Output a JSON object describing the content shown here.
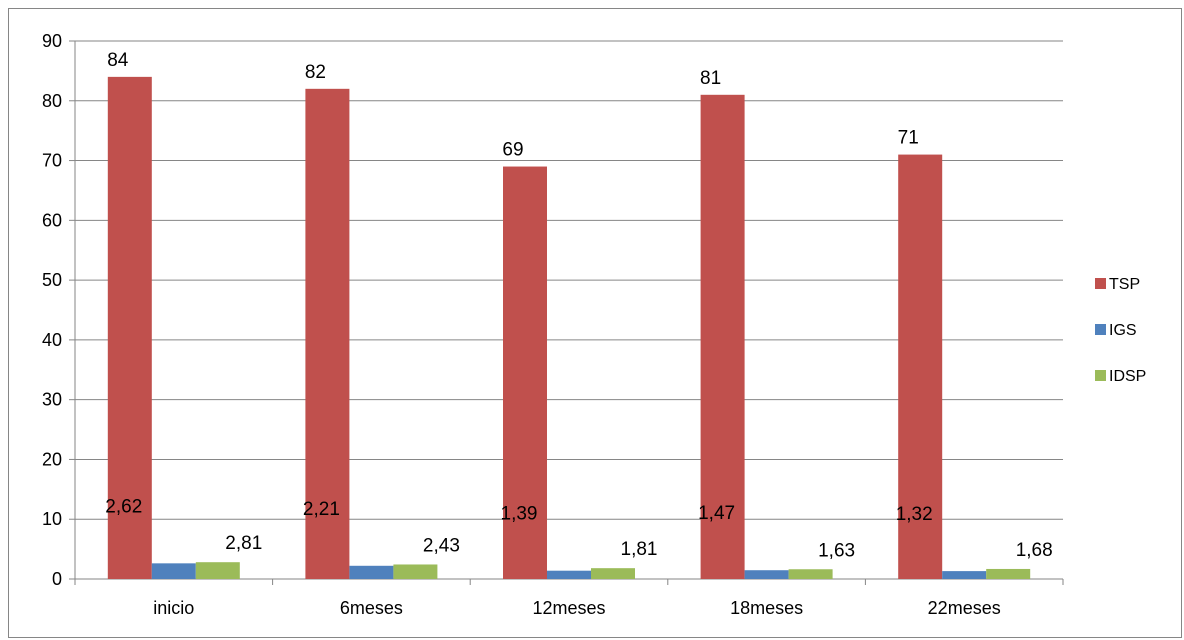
{
  "chart_data": {
    "type": "bar",
    "categories": [
      "inicio",
      "6meses",
      "12meses",
      "18meses",
      "22meses"
    ],
    "series": [
      {
        "name": "TSP",
        "values": [
          84,
          82,
          69,
          81,
          71
        ],
        "labels": [
          "84",
          "82",
          "69",
          "81",
          "71"
        ],
        "color": "#C0504D"
      },
      {
        "name": "IGS",
        "values": [
          2.62,
          2.21,
          1.39,
          1.47,
          1.32
        ],
        "labels": [
          "2,62",
          "2,21",
          "1,39",
          "1,47",
          "1,32"
        ],
        "color": "#4F81BD"
      },
      {
        "name": "IDSP",
        "values": [
          2.81,
          2.43,
          1.81,
          1.63,
          1.68
        ],
        "labels": [
          "2,81",
          "2,43",
          "1,81",
          "1,63",
          "1,68"
        ],
        "color": "#9BBB59"
      }
    ],
    "ylim": [
      0,
      90
    ],
    "yticks": [
      0,
      10,
      20,
      30,
      40,
      50,
      60,
      70,
      80,
      90
    ],
    "grid": true,
    "legend_position": "right",
    "title": "",
    "xlabel": "",
    "ylabel": ""
  }
}
